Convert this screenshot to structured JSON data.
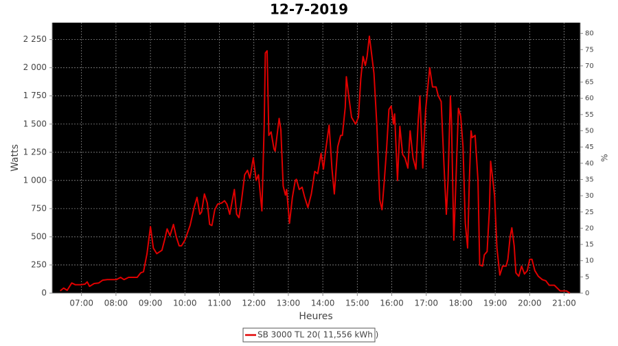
{
  "chart_data": {
    "type": "line",
    "title": "12-7-2019",
    "xlabel": "Heures",
    "ylabel": "Watts",
    "y2label": "%",
    "x": [
      383,
      389,
      395,
      403,
      409,
      419,
      426,
      430,
      434,
      442,
      450,
      457,
      465,
      481,
      488,
      494,
      502,
      517,
      523,
      528,
      534,
      540,
      545,
      551,
      560,
      565,
      569,
      574,
      580,
      585,
      590,
      594,
      600,
      609,
      616,
      621,
      626,
      629,
      634,
      639,
      643,
      647,
      652,
      657,
      664,
      669,
      673,
      678,
      686,
      690,
      694,
      698,
      704,
      709,
      713,
      719,
      724,
      728,
      734,
      738,
      740,
      743,
      746,
      750,
      755,
      757,
      764,
      767,
      771,
      775,
      777,
      782,
      787,
      792,
      794,
      799,
      804,
      808,
      814,
      820,
      826,
      831,
      837,
      841,
      845,
      851,
      856,
      860,
      866,
      871,
      874,
      879,
      881,
      885,
      890,
      897,
      902,
      906,
      910,
      914,
      917,
      921,
      924,
      929,
      934,
      939,
      943,
      947,
      951,
      955,
      959,
      963,
      965,
      970,
      974,
      979,
      983,
      988,
      992,
      997,
      1002,
      1006,
      1009,
      1014,
      1019,
      1026,
      1031,
      1037,
      1041,
      1046,
      1051,
      1055,
      1058,
      1062,
      1064,
      1068,
      1072,
      1076,
      1080,
      1084,
      1088,
      1092,
      1095,
      1098,
      1100,
      1105,
      1110,
      1113,
      1118,
      1121,
      1126,
      1130,
      1132,
      1136,
      1139,
      1143,
      1148,
      1153,
      1159,
      1162,
      1166,
      1169,
      1173,
      1176,
      1181,
      1186,
      1191,
      1196,
      1200,
      1204,
      1209,
      1215,
      1222,
      1228,
      1234,
      1243,
      1253,
      1264,
      1270
    ],
    "series": [
      {
        "name": "SB 3000 TL 20( 11,556 kWh )",
        "color": "#e00000",
        "values": [
          20,
          45,
          25,
          90,
          75,
          75,
          80,
          100,
          60,
          85,
          90,
          115,
          120,
          120,
          140,
          120,
          140,
          140,
          180,
          190,
          350,
          590,
          400,
          350,
          380,
          480,
          570,
          510,
          610,
          500,
          420,
          420,
          470,
          600,
          760,
          850,
          700,
          720,
          880,
          800,
          610,
          600,
          740,
          790,
          800,
          820,
          790,
          700,
          920,
          700,
          670,
          800,
          1050,
          1090,
          1020,
          1200,
          1000,
          1050,
          730,
          1500,
          2130,
          2150,
          1400,
          1430,
          1280,
          1260,
          1550,
          1450,
          950,
          870,
          920,
          620,
          850,
          1000,
          1010,
          920,
          940,
          860,
          760,
          880,
          1080,
          1060,
          1240,
          1100,
          1270,
          1490,
          1100,
          880,
          1300,
          1400,
          1400,
          1650,
          1920,
          1750,
          1560,
          1500,
          1560,
          1900,
          2100,
          2020,
          2100,
          2280,
          2160,
          1950,
          1490,
          830,
          740,
          1000,
          1280,
          1630,
          1660,
          1500,
          1590,
          1000,
          1480,
          1230,
          1200,
          1110,
          1440,
          1200,
          1100,
          1530,
          1750,
          1110,
          1630,
          2000,
          1830,
          1830,
          1750,
          1700,
          1120,
          700,
          1000,
          1750,
          1500,
          470,
          1050,
          1640,
          1570,
          1300,
          620,
          400,
          1000,
          1440,
          1380,
          1400,
          1000,
          250,
          240,
          340,
          370,
          750,
          1170,
          1000,
          860,
          400,
          160,
          240,
          240,
          300,
          500,
          580,
          420,
          180,
          150,
          240,
          170,
          200,
          300,
          300,
          200,
          150,
          120,
          110,
          70,
          70,
          20,
          20,
          0
        ]
      }
    ],
    "xlim": [
      369,
      1288
    ],
    "xticks": [
      {
        "value": 420,
        "label": "07:00"
      },
      {
        "value": 480,
        "label": "08:00"
      },
      {
        "value": 540,
        "label": "09:00"
      },
      {
        "value": 600,
        "label": "10:00"
      },
      {
        "value": 660,
        "label": "11:00"
      },
      {
        "value": 720,
        "label": "12:00"
      },
      {
        "value": 780,
        "label": "13:00"
      },
      {
        "value": 840,
        "label": "14:00"
      },
      {
        "value": 900,
        "label": "15:00"
      },
      {
        "value": 960,
        "label": "16:00"
      },
      {
        "value": 1020,
        "label": "17:00"
      },
      {
        "value": 1080,
        "label": "18:00"
      },
      {
        "value": 1140,
        "label": "19:00"
      },
      {
        "value": 1200,
        "label": "20:00"
      },
      {
        "value": 1260,
        "label": "21:00"
      }
    ],
    "ylim": [
      0,
      2400
    ],
    "yticks": [
      0,
      250,
      500,
      750,
      {
        "value": 1000,
        "label": "1 000"
      },
      {
        "value": 1250,
        "label": "1 250"
      },
      {
        "value": 1500,
        "label": "1 500"
      },
      {
        "value": 1750,
        "label": "1 750"
      },
      {
        "value": 2000,
        "label": "2 000"
      },
      {
        "value": 2250,
        "label": "2 250"
      }
    ],
    "y2lim": [
      0,
      83.3
    ],
    "y2ticks": [
      0,
      5,
      10,
      15,
      20,
      25,
      30,
      35,
      40,
      45,
      50,
      55,
      60,
      65,
      70,
      75,
      80
    ],
    "grid": true,
    "legend": "bottom"
  }
}
